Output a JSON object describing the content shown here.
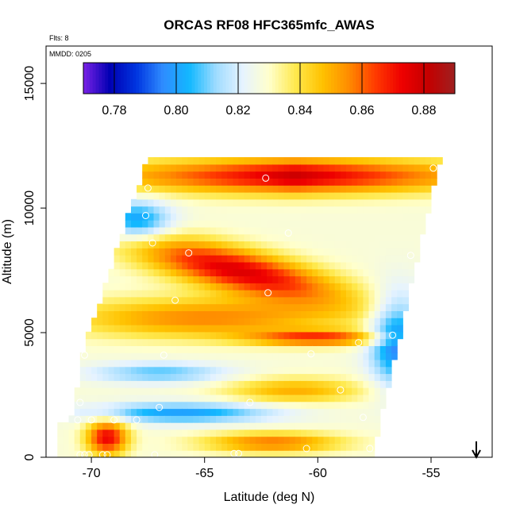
{
  "chart_data": {
    "type": "heatmap",
    "title": "ORCAS RF08 HFC365mfc_AWAS",
    "flts_label": "Flts: 8",
    "mmdd_label": "MMDD: 0205",
    "xlabel": "Latitude (deg N)",
    "ylabel": "Altitude (m)",
    "xlim": [
      -72,
      -52.3
    ],
    "ylim": [
      0,
      16500
    ],
    "x_ticks": [
      -70,
      -65,
      -60,
      -55
    ],
    "x_tick_labels": [
      "-70",
      "-65",
      "-60",
      "-55"
    ],
    "y_ticks": [
      0,
      5000,
      10000,
      15000
    ],
    "y_tick_labels": [
      "0",
      "5000",
      "10000",
      "15000"
    ],
    "colorbar": {
      "range": [
        0.77,
        0.89
      ],
      "ticks": [
        0.78,
        0.8,
        0.82,
        0.84,
        0.86,
        0.88
      ],
      "tick_labels": [
        "0.78",
        "0.80",
        "0.82",
        "0.84",
        "0.86",
        "0.88"
      ],
      "colors": [
        "#7b22e6",
        "#0000b3",
        "#0035e0",
        "#2f8cff",
        "#12b8ff",
        "#9fdcff",
        "#e6f3ff",
        "#ffffcc",
        "#ffe94d",
        "#ffc200",
        "#ff8c00",
        "#ff3a00",
        "#ee0000",
        "#c40000",
        "#9e2020"
      ]
    },
    "grid": false,
    "samples": [
      {
        "x": -70.5,
        "y": 100
      },
      {
        "x": -70.3,
        "y": 100
      },
      {
        "x": -70.1,
        "y": 100
      },
      {
        "x": -69.5,
        "y": 100
      },
      {
        "x": -69.3,
        "y": 100
      },
      {
        "x": -67.2,
        "y": 100
      },
      {
        "x": -63.7,
        "y": 150
      },
      {
        "x": -63.5,
        "y": 150
      },
      {
        "x": -60.5,
        "y": 350
      },
      {
        "x": -57.7,
        "y": 350
      },
      {
        "x": -70.6,
        "y": 1500
      },
      {
        "x": -70.0,
        "y": 1500
      },
      {
        "x": -69.0,
        "y": 1500
      },
      {
        "x": -68.0,
        "y": 1500
      },
      {
        "x": -58.0,
        "y": 1600
      },
      {
        "x": -57.0,
        "y": 1800
      },
      {
        "x": -70.5,
        "y": 2200
      },
      {
        "x": -67.0,
        "y": 2000
      },
      {
        "x": -63.0,
        "y": 2200
      },
      {
        "x": -59.0,
        "y": 2700
      },
      {
        "x": -70.3,
        "y": 4100
      },
      {
        "x": -66.8,
        "y": 4100
      },
      {
        "x": -60.3,
        "y": 4150
      },
      {
        "x": -58.2,
        "y": 4600
      },
      {
        "x": -56.7,
        "y": 4900
      },
      {
        "x": -66.3,
        "y": 6300
      },
      {
        "x": -62.2,
        "y": 6600
      },
      {
        "x": -65.7,
        "y": 8200
      },
      {
        "x": -61.3,
        "y": 9000
      },
      {
        "x": -55.9,
        "y": 8100
      },
      {
        "x": -67.3,
        "y": 8600
      },
      {
        "x": -67.6,
        "y": 9700
      },
      {
        "x": -67.5,
        "y": 10800
      },
      {
        "x": -62.3,
        "y": 11200
      },
      {
        "x": -54.9,
        "y": 11600
      }
    ],
    "arrow_x": -53.0
  }
}
